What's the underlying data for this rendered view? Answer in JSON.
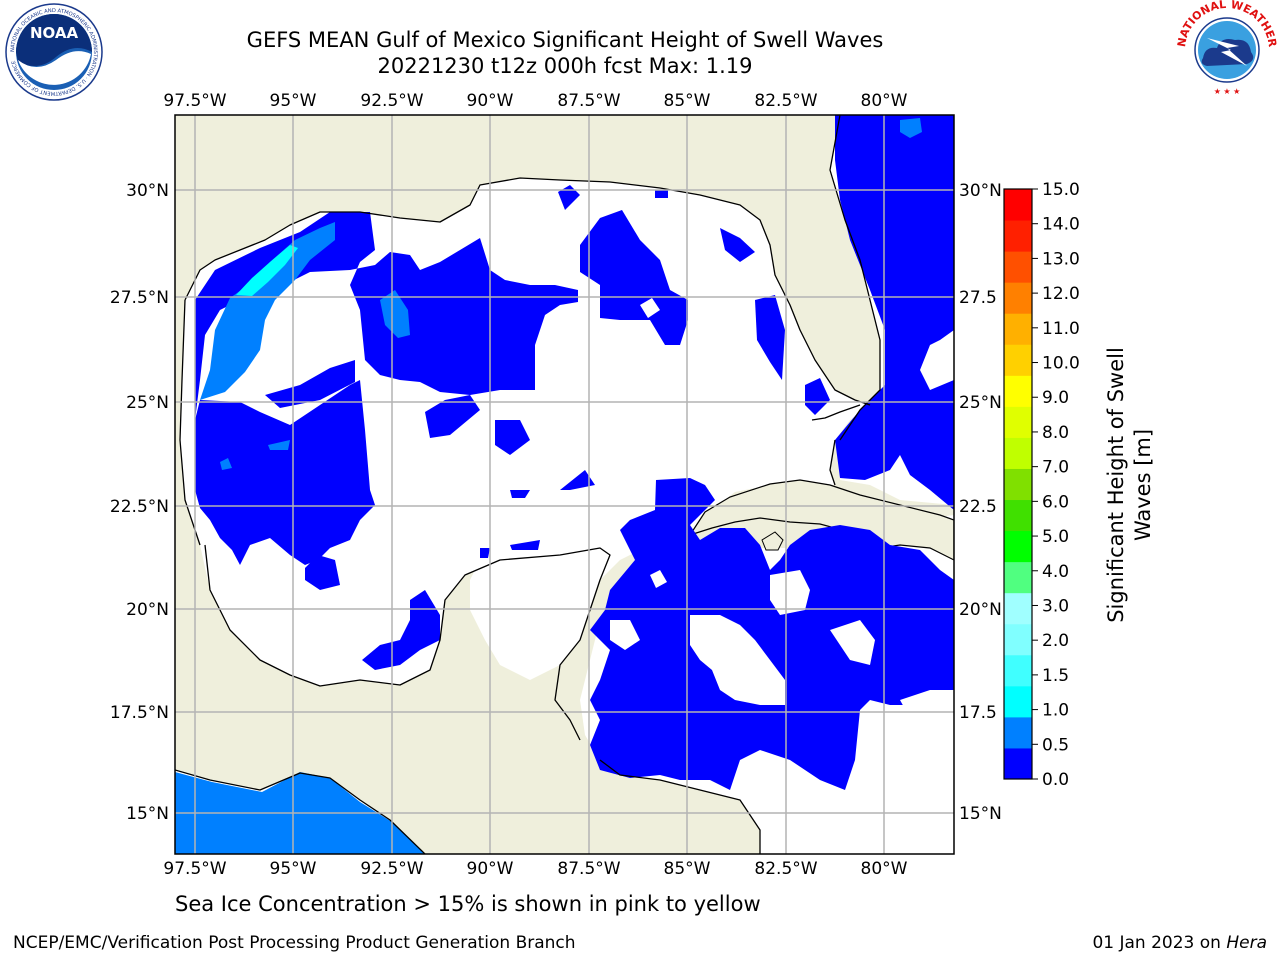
{
  "header": {
    "title_line1": "GEFS MEAN Gulf of Mexico Significant Height of Swell Waves",
    "title_line2": "20221230 t12z 000h fcst   Max: 1.19"
  },
  "logos": {
    "left": {
      "icon": "noaa-logo-icon",
      "text": "NOAA",
      "ring_text": "NATIONAL OCEANIC AND ATMOSPHERIC ADMINISTRATION · U.S. DEPARTMENT OF COMMERCE"
    },
    "right": {
      "icon": "national-weather-service-logo-icon",
      "ring_text": "NATIONAL WEATHER SERVICE"
    }
  },
  "map": {
    "lon_labels": [
      "97.5°W",
      "95°W",
      "92.5°W",
      "90°W",
      "87.5°W",
      "85°W",
      "82.5°W",
      "80°W"
    ],
    "lat_labels_left": [
      "30°N",
      "27.5°N",
      "25°N",
      "22.5°N",
      "20°N",
      "17.5°N",
      "15°N"
    ],
    "lat_labels_right": [
      "30°N",
      "27.5",
      "25°N",
      "22.5",
      "20°N",
      "17.5",
      "15°N"
    ],
    "colors": {
      "land": "#efefdc",
      "water_no_swell": "#ffffff",
      "grid": "#b4b4b4",
      "coast": "#000000"
    }
  },
  "colorbar": {
    "label_line1": "Significant Height of Swell",
    "label_line2": "Waves [m]",
    "ticks": [
      "0.0",
      "0.5",
      "1.0",
      "1.5",
      "2.0",
      "3.0",
      "4.0",
      "5.0",
      "6.0",
      "7.0",
      "8.0",
      "9.0",
      "10.0",
      "11.0",
      "12.0",
      "13.0",
      "14.0",
      "15.0"
    ],
    "colors": [
      "#0000ff",
      "#0080ff",
      "#00ffff",
      "#40ffff",
      "#80ffff",
      "#a0ffff",
      "#50ff80",
      "#00ff00",
      "#40e000",
      "#80e000",
      "#c0ff00",
      "#e0ff00",
      "#ffff00",
      "#ffd000",
      "#ffb000",
      "#ff8000",
      "#ff5000",
      "#ff2000",
      "#ff0000"
    ]
  },
  "caption": "Sea Ice Concentration > 15% is shown in pink to yellow",
  "footer": {
    "left": "NCEP/EMC/Verification Post Processing Product Generation Branch",
    "right_date": "01 Jan 2023 on ",
    "right_host": "Hera"
  }
}
